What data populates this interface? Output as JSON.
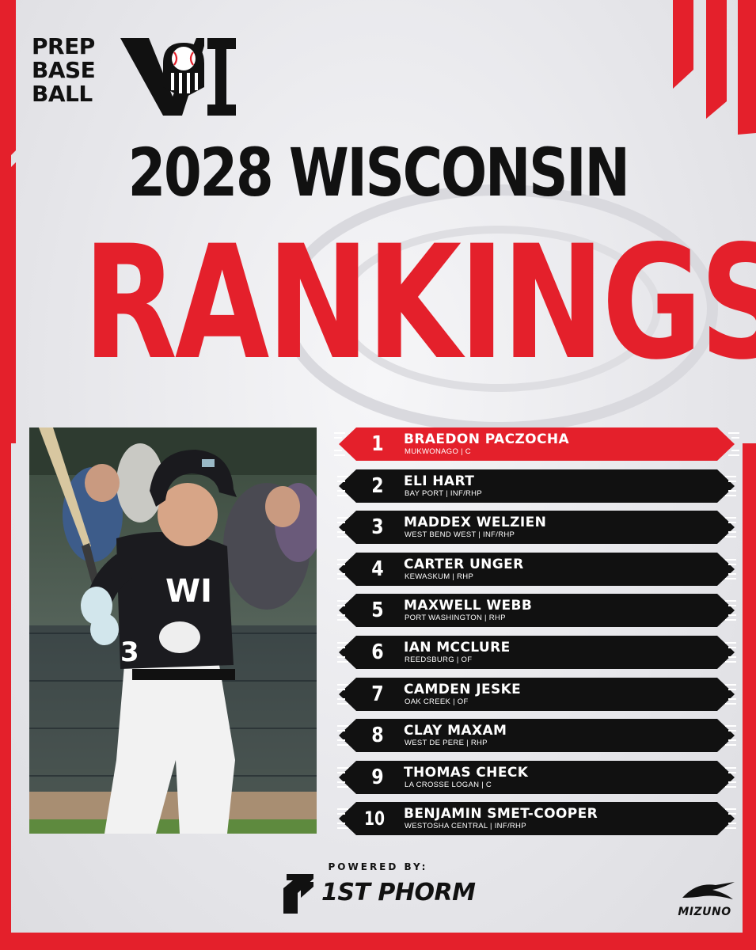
{
  "brand": {
    "logo_lines": [
      "PREP",
      "BASE",
      "BALL"
    ],
    "logo_mark": "WI",
    "accent": "#e4202b",
    "dark": "#111111"
  },
  "headline": {
    "year_line": "2028 WISCONSIN",
    "title": "RANKINGS"
  },
  "photo": {
    "jersey_letters": "WI",
    "jersey_number": "3"
  },
  "rankings": [
    {
      "rank": "1",
      "name": "BRAEDON PACZOCHA",
      "meta": "MUKWONAGO | C"
    },
    {
      "rank": "2",
      "name": "ELI HART",
      "meta": "BAY PORT | INF/RHP"
    },
    {
      "rank": "3",
      "name": "MADDEX WELZIEN",
      "meta": "WEST BEND WEST | INF/RHP"
    },
    {
      "rank": "4",
      "name": "CARTER UNGER",
      "meta": "KEWASKUM | RHP"
    },
    {
      "rank": "5",
      "name": "MAXWELL WEBB",
      "meta": "PORT WASHINGTON | RHP"
    },
    {
      "rank": "6",
      "name": "IAN MCCLURE",
      "meta": "REEDSBURG | OF"
    },
    {
      "rank": "7",
      "name": "CAMDEN JESKE",
      "meta": "OAK CREEK | OF"
    },
    {
      "rank": "8",
      "name": "CLAY MAXAM",
      "meta": "WEST DE PERE | RHP"
    },
    {
      "rank": "9",
      "name": "THOMAS CHECK",
      "meta": "LA CROSSE LOGAN | C"
    },
    {
      "rank": "10",
      "name": "BENJAMIN SMET-COOPER",
      "meta": "WESTOSHA CENTRAL | INF/RHP"
    }
  ],
  "footer": {
    "powered_by": "POWERED BY:",
    "sponsor": "1ST PHORM",
    "sponsor_2": "MIZUNO"
  }
}
